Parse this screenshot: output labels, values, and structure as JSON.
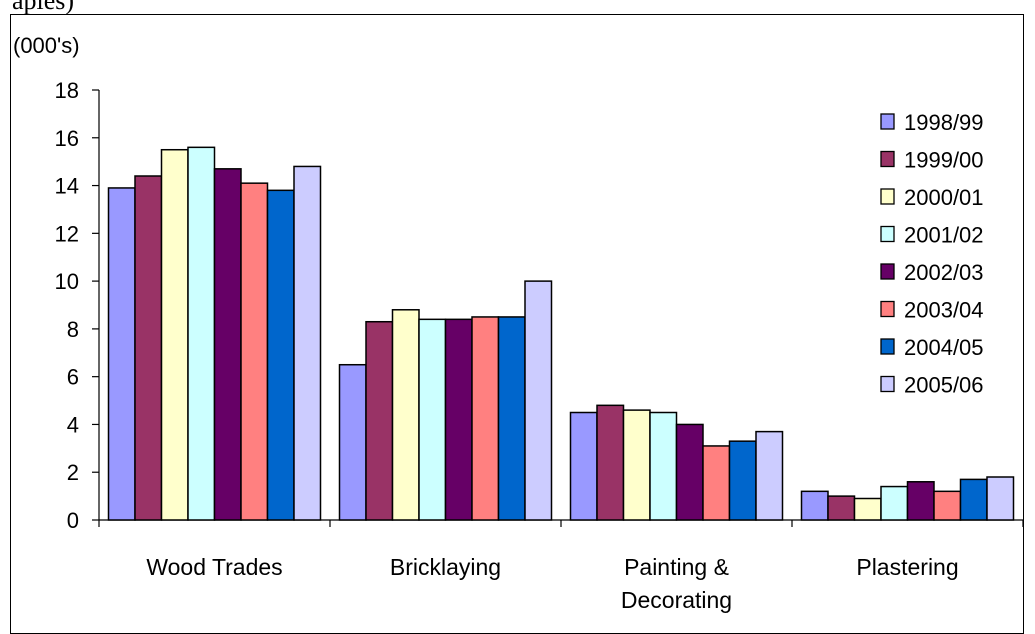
{
  "page": {
    "top_fragment": "aples)"
  },
  "chart_data": {
    "type": "bar",
    "unit_label": "(000's)",
    "categories": [
      [
        "Wood Trades"
      ],
      [
        "Bricklaying"
      ],
      [
        "Painting &",
        "Decorating"
      ],
      [
        "Plastering"
      ]
    ],
    "series": [
      {
        "name": "1998/99",
        "color": "#9999FF",
        "values": [
          13.9,
          6.5,
          4.5,
          1.2
        ]
      },
      {
        "name": "1999/00",
        "color": "#993366",
        "values": [
          14.4,
          8.3,
          4.8,
          1.0
        ]
      },
      {
        "name": "2000/01",
        "color": "#FFFFCC",
        "values": [
          15.5,
          8.8,
          4.6,
          0.9
        ]
      },
      {
        "name": "2001/02",
        "color": "#CCFFFF",
        "values": [
          15.6,
          8.4,
          4.5,
          1.4
        ]
      },
      {
        "name": "2002/03",
        "color": "#660066",
        "values": [
          14.7,
          8.4,
          4.0,
          1.6
        ]
      },
      {
        "name": "2003/04",
        "color": "#FF8080",
        "values": [
          14.1,
          8.5,
          3.1,
          1.2
        ]
      },
      {
        "name": "2004/05",
        "color": "#0066CC",
        "values": [
          13.8,
          8.5,
          3.3,
          1.7
        ]
      },
      {
        "name": "2005/06",
        "color": "#CCCCFF",
        "values": [
          14.8,
          10.0,
          3.7,
          1.8
        ]
      }
    ],
    "ylim": [
      0,
      18
    ],
    "yticks": [
      "0",
      "2",
      "4",
      "6",
      "8",
      "10",
      "12",
      "14",
      "16",
      "18"
    ],
    "grid": false,
    "legend_position": "right"
  }
}
